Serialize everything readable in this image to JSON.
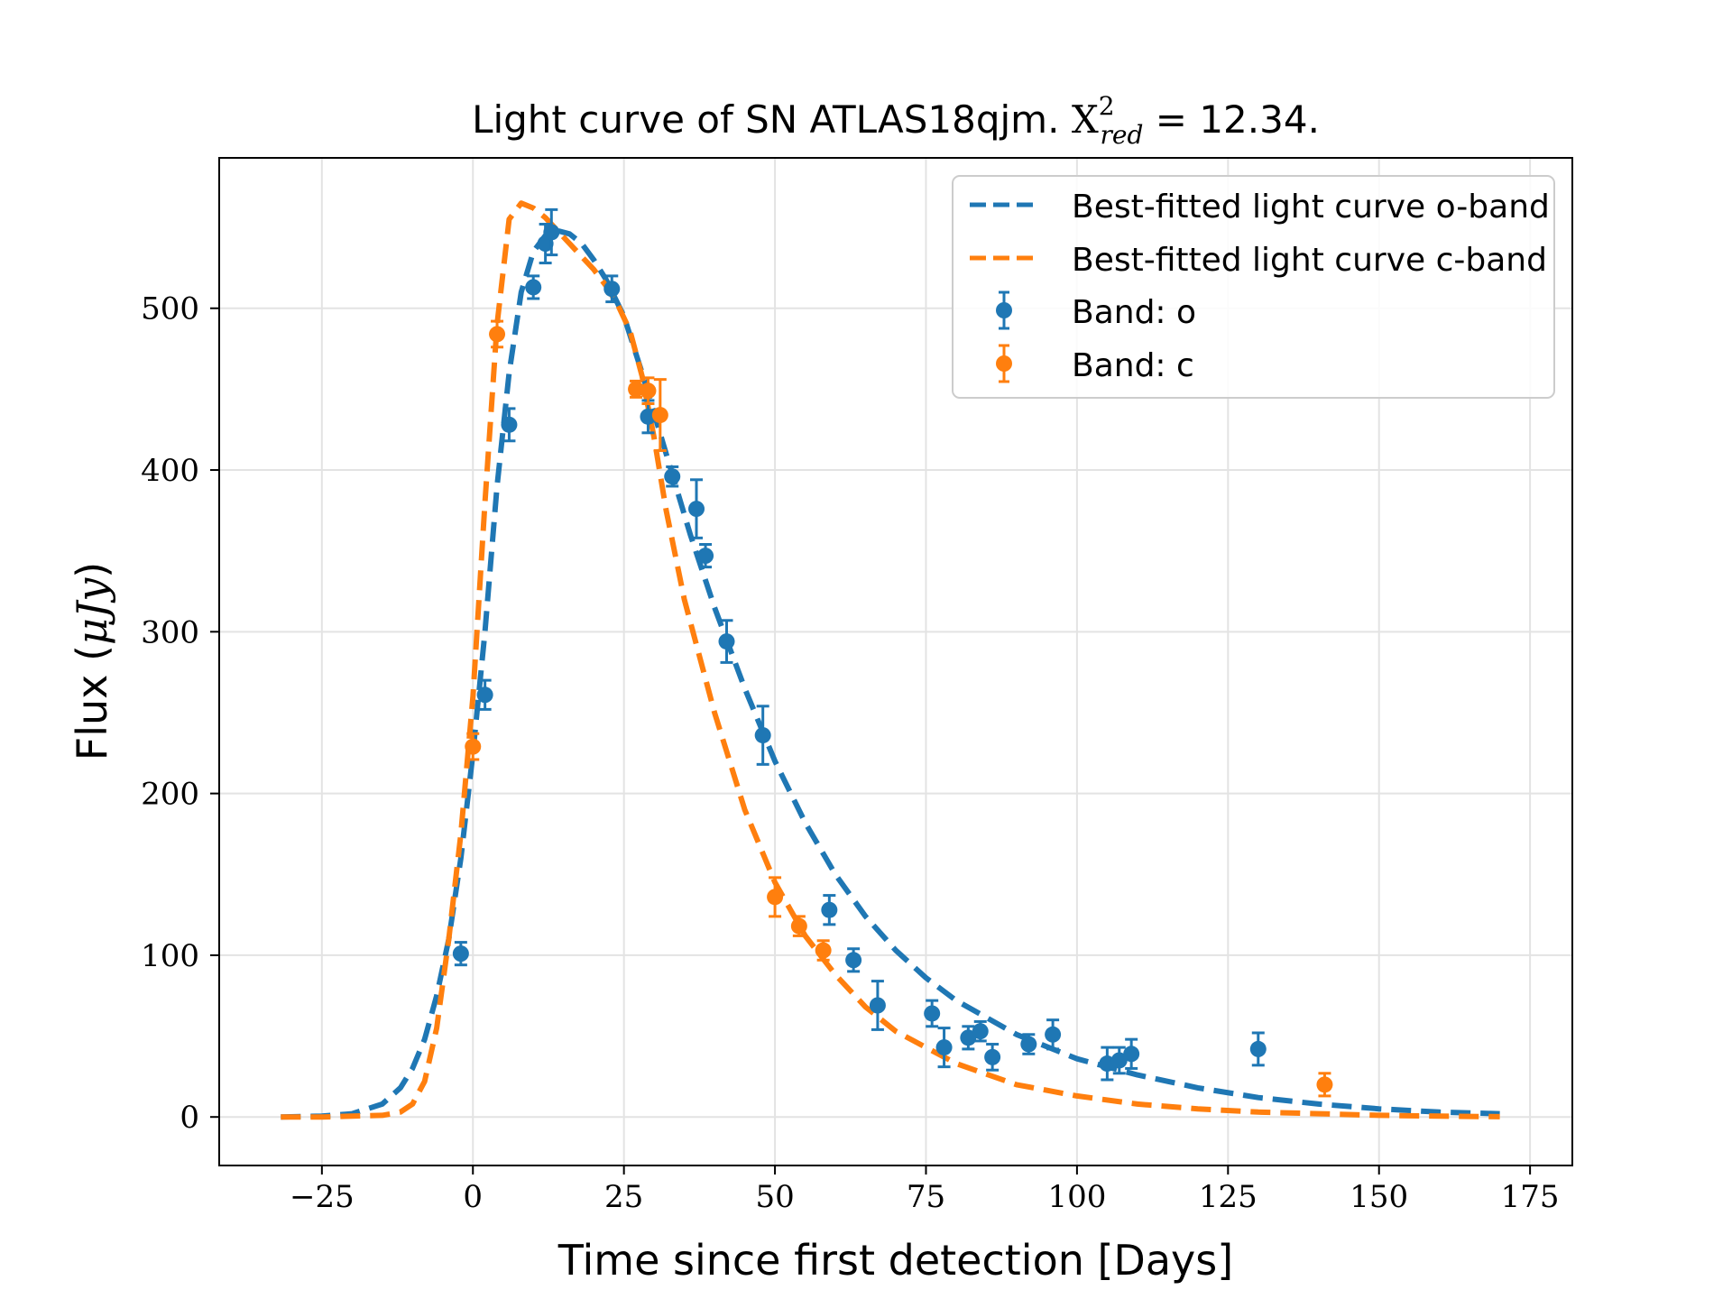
{
  "chart_data": {
    "type": "scatter",
    "title_prefix": "Light curve of SN ATLAS18qjm. ",
    "title_math": {
      "symbol": "X",
      "sup": "2",
      "sub": "red",
      "rest": " = 12.34."
    },
    "xlabel": "Time since first detection [Days]",
    "ylabel_prefix": "Flux (",
    "ylabel_math": "μJy",
    "ylabel_suffix": ")",
    "xlim": [
      -42,
      182
    ],
    "ylim": [
      -30,
      593
    ],
    "xticks": [
      -25,
      0,
      25,
      50,
      75,
      100,
      125,
      150,
      175
    ],
    "xtick_labels": [
      "−25",
      "0",
      "25",
      "50",
      "75",
      "100",
      "125",
      "150",
      "175"
    ],
    "yticks": [
      0,
      100,
      200,
      300,
      400,
      500
    ],
    "ytick_labels": [
      "0",
      "100",
      "200",
      "300",
      "400",
      "500"
    ],
    "grid": true,
    "legend_position": "top-right",
    "colors": {
      "o": "#1f77b4",
      "c": "#ff7f0e"
    },
    "series": [
      {
        "name": "Best-fitted light curve o-band",
        "kind": "line",
        "color": "#1f77b4",
        "x": [
          -31.8,
          -25,
          -20,
          -15,
          -12,
          -10,
          -8,
          -6,
          -4,
          -2,
          0,
          2,
          4,
          6,
          8,
          10,
          12,
          14,
          16,
          18,
          20,
          22,
          25,
          28,
          32,
          36,
          40,
          45,
          50,
          55,
          60,
          65,
          70,
          75,
          80,
          90,
          100,
          110,
          120,
          130,
          140,
          150,
          160,
          170
        ],
        "y": [
          0,
          0.5,
          2,
          8,
          18,
          30,
          48,
          75,
          110,
          160,
          225,
          300,
          390,
          460,
          510,
          535,
          545,
          548,
          546,
          540,
          530,
          518,
          495,
          460,
          410,
          360,
          315,
          265,
          220,
          182,
          150,
          124,
          103,
          86,
          72,
          51,
          36,
          26,
          18,
          12,
          8,
          5,
          3,
          2
        ]
      },
      {
        "name": "Best-fitted light curve c-band",
        "kind": "line",
        "color": "#ff7f0e",
        "x": [
          -31.8,
          -25,
          -20,
          -15,
          -12,
          -10,
          -8,
          -6,
          -4,
          -2,
          0,
          2,
          4,
          6,
          8,
          10,
          12,
          14,
          16,
          18,
          20,
          22,
          24,
          26,
          28,
          30,
          32,
          35,
          40,
          45,
          50,
          55,
          60,
          65,
          70,
          80,
          90,
          100,
          110,
          120,
          130,
          140,
          150,
          160,
          170
        ],
        "y": [
          0,
          0,
          0.5,
          1,
          3,
          8,
          22,
          55,
          110,
          175,
          260,
          380,
          490,
          555,
          565,
          562,
          556,
          548,
          540,
          532,
          524,
          514,
          502,
          486,
          458,
          420,
          375,
          320,
          250,
          190,
          145,
          112,
          88,
          68,
          53,
          33,
          20,
          13,
          8,
          5,
          3,
          2,
          1,
          0.5,
          0.2
        ]
      },
      {
        "name": "Band: o",
        "kind": "errorbar",
        "color": "#1f77b4",
        "x": [
          -2,
          2,
          6,
          10,
          12,
          13,
          23,
          29,
          33,
          37,
          38.5,
          42,
          48,
          59,
          63,
          67,
          76,
          78,
          82,
          84,
          86,
          92,
          96,
          105,
          107,
          109,
          130
        ],
        "y": [
          101,
          261,
          428,
          513,
          540,
          547,
          512,
          433,
          396,
          376,
          347,
          294,
          236,
          128,
          97,
          69,
          64,
          43,
          49,
          53,
          37,
          45,
          51,
          33,
          35,
          39,
          42
        ],
        "err": [
          7,
          9,
          10,
          7,
          12,
          14,
          8,
          10,
          6,
          18,
          7,
          13,
          18,
          9,
          7,
          15,
          8,
          12,
          7,
          6,
          8,
          6,
          9,
          10,
          8,
          9,
          10
        ]
      },
      {
        "name": "Band: c",
        "kind": "errorbar",
        "color": "#ff7f0e",
        "x": [
          0,
          4,
          27,
          29,
          31,
          50,
          54,
          58,
          141
        ],
        "y": [
          229,
          484,
          450,
          449,
          434,
          136,
          118,
          103,
          20
        ],
        "err": [
          8,
          8,
          5,
          8,
          22,
          12,
          6,
          6,
          7
        ]
      }
    ]
  }
}
